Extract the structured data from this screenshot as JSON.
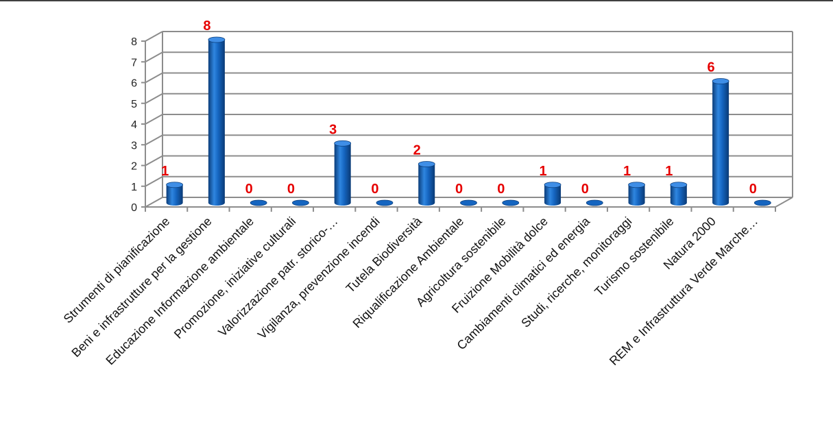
{
  "chart_data": {
    "type": "bar",
    "title": "",
    "xlabel": "",
    "ylabel": "",
    "ylim": [
      0,
      8
    ],
    "yticks": [
      0,
      1,
      2,
      3,
      4,
      5,
      6,
      7,
      8
    ],
    "grid": true,
    "legend": "none",
    "bar_color": "#1565c0",
    "label_color": "#e60000",
    "categories": [
      "Strumenti di pianificazione",
      "Beni e infrastrutture per la gestione",
      "Educazione Informazione ambientale",
      "Promozione, iniziative culturali",
      "Valorizzazione patr. storico-…",
      "Vigilanza, prevenzione incendi",
      "Tutela Biodiversità",
      "Riqualificazione Ambientale",
      "Agricoltura sostenibile",
      "Fruizione Mobilità dolce",
      "Cambiamenti climatici ed energia",
      "Studi, ricerche, monitoraggi",
      "Turismo sostenibile",
      "Natura 2000",
      "REM e Infrastruttura Verde Marche…"
    ],
    "values": [
      1,
      8,
      0,
      0,
      3,
      0,
      2,
      0,
      0,
      1,
      0,
      1,
      1,
      6,
      0
    ],
    "data_labels": [
      "1",
      "8",
      "0",
      "0",
      "3",
      "0",
      "2",
      "0",
      "0",
      "1",
      "0",
      "1",
      "1",
      "6",
      "0"
    ]
  }
}
